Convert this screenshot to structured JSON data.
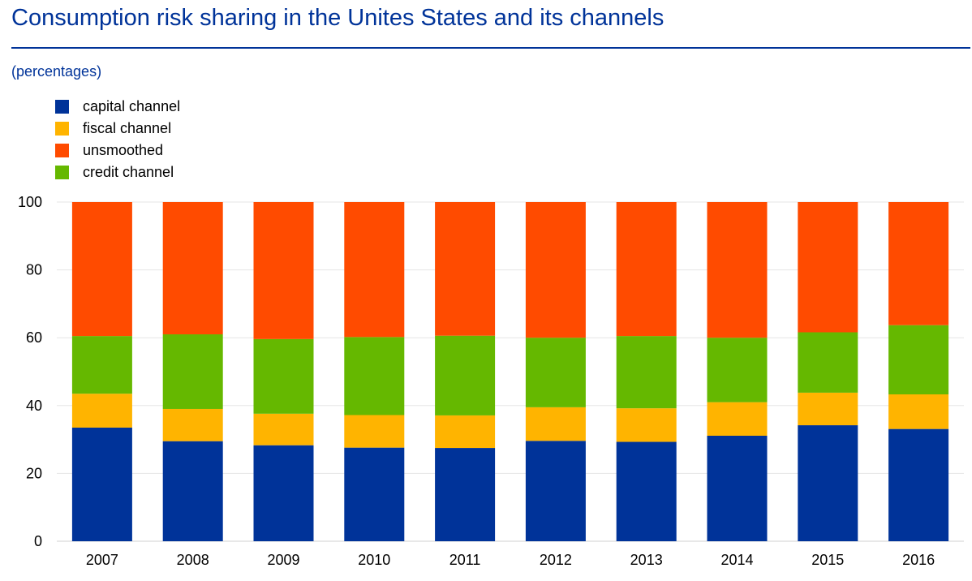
{
  "header": {
    "title": "Consumption risk sharing in the Unites States and its channels",
    "subtitle": "(percentages)"
  },
  "colors": {
    "title": "#003399",
    "grid": "#e6e6e6"
  },
  "chart_data": {
    "type": "bar",
    "stacked": true,
    "title": "Consumption risk sharing in the Unites States and its channels",
    "ylabel": "percentages",
    "xlabel": "",
    "ylim": [
      0,
      100
    ],
    "yticks": [
      0,
      20,
      40,
      60,
      80,
      100
    ],
    "grid": true,
    "legend_position": "top-left",
    "categories": [
      "2007",
      "2008",
      "2009",
      "2010",
      "2011",
      "2012",
      "2013",
      "2014",
      "2015",
      "2016"
    ],
    "series": [
      {
        "name": "capital channel",
        "color": "#003399",
        "values": [
          33.5,
          29.5,
          28.3,
          27.6,
          27.5,
          29.6,
          29.3,
          31.1,
          34.2,
          33.1
        ]
      },
      {
        "name": "fiscal channel",
        "color": "#ffb400",
        "values": [
          10.0,
          9.5,
          9.3,
          9.6,
          9.6,
          9.9,
          9.9,
          9.9,
          9.6,
          10.2
        ]
      },
      {
        "name": "credit channel",
        "color": "#65b800",
        "values": [
          17.0,
          22.0,
          22.0,
          23.0,
          23.5,
          20.5,
          21.3,
          19.0,
          17.8,
          20.4
        ]
      },
      {
        "name": "unsmoothed",
        "color": "#ff4b00",
        "values": [
          39.5,
          39.0,
          40.4,
          39.8,
          39.4,
          40.0,
          39.5,
          40.0,
          38.4,
          36.3
        ]
      }
    ],
    "legend_order": [
      "capital channel",
      "fiscal channel",
      "unsmoothed",
      "credit channel"
    ]
  }
}
